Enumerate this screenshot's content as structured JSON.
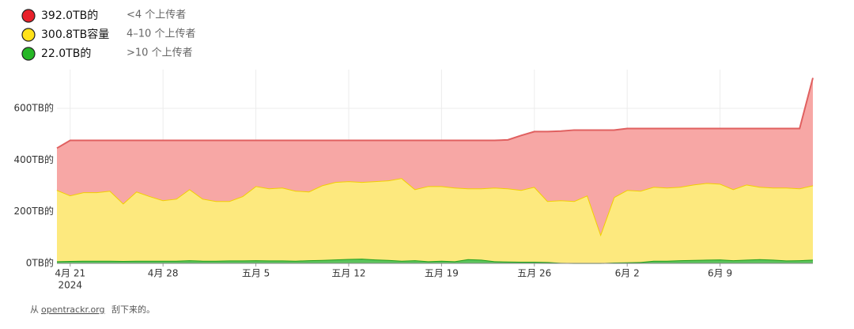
{
  "chart_data": {
    "type": "stacked-area",
    "x": [
      "2024-04-20",
      "2024-04-21",
      "2024-04-22",
      "2024-04-23",
      "2024-04-24",
      "2024-04-25",
      "2024-04-26",
      "2024-04-27",
      "2024-04-28",
      "2024-04-29",
      "2024-04-30",
      "2024-05-01",
      "2024-05-02",
      "2024-05-03",
      "2024-05-04",
      "2024-05-05",
      "2024-05-06",
      "2024-05-07",
      "2024-05-08",
      "2024-05-09",
      "2024-05-10",
      "2024-05-11",
      "2024-05-12",
      "2024-05-13",
      "2024-05-14",
      "2024-05-15",
      "2024-05-16",
      "2024-05-17",
      "2024-05-18",
      "2024-05-19",
      "2024-05-20",
      "2024-05-21",
      "2024-05-22",
      "2024-05-23",
      "2024-05-24",
      "2024-05-25",
      "2024-05-26",
      "2024-05-27",
      "2024-05-28",
      "2024-05-29",
      "2024-05-30",
      "2024-05-31",
      "2024-06-01",
      "2024-06-02",
      "2024-06-03",
      "2024-06-04",
      "2024-06-05",
      "2024-06-06",
      "2024-06-07",
      "2024-06-08",
      "2024-06-09",
      "2024-06-10",
      "2024-06-11",
      "2024-06-12",
      "2024-06-13",
      "2024-06-14",
      "2024-06-15",
      "2024-06-16"
    ],
    "series": [
      {
        "name": "392.0TB的",
        "description": "<4 个上传者",
        "color": "#e8202a",
        "fill": "#f7a7a5",
        "line": "#e06060",
        "values": [
          162,
          213,
          201,
          201,
          195,
          244,
          198,
          216,
          232,
          226,
          189,
          226,
          235,
          235,
          216,
          177,
          186,
          183,
          195,
          198,
          174,
          161,
          158,
          161,
          158,
          155,
          146,
          189,
          177,
          177,
          183,
          186,
          186,
          183,
          188,
          211,
          214,
          269,
          268,
          275,
          253,
          403,
          260,
          238,
          241,
          226,
          229,
          226,
          217,
          211,
          214,
          235,
          217,
          226,
          229,
          229,
          232,
          416
        ]
      },
      {
        "name": "300.8TB容量",
        "description": "4–10 个上传者",
        "color": "#ffe21a",
        "fill": "#fde97e",
        "line": "#f2cf00",
        "values": [
          276,
          254,
          265,
          265,
          271,
          223,
          268,
          250,
          234,
          240,
          275,
          240,
          231,
          230,
          249,
          287,
          279,
          282,
          271,
          266,
          289,
          300,
          301,
          297,
          303,
          308,
          320,
          275,
          291,
          289,
          285,
          274,
          276,
          285,
          283,
          278,
          290,
          236,
          242,
          240,
          262,
          112,
          253,
          280,
          276,
          286,
          283,
          284,
          292,
          297,
          293,
          275,
          291,
          280,
          279,
          282,
          278,
          288
        ]
      },
      {
        "name": "22.0TB的",
        "description": ">10 个上传者",
        "color": "#26b726",
        "fill": "#5cc35c",
        "line": "#1e9e1e",
        "values": [
          8,
          9,
          10,
          10,
          10,
          9,
          10,
          10,
          10,
          10,
          12,
          10,
          10,
          11,
          11,
          12,
          11,
          11,
          10,
          12,
          13,
          15,
          17,
          18,
          15,
          13,
          10,
          12,
          8,
          10,
          8,
          16,
          14,
          8,
          7,
          6,
          6,
          5,
          2,
          1,
          1,
          1,
          3,
          4,
          5,
          10,
          10,
          12,
          13,
          14,
          15,
          12,
          14,
          16,
          14,
          11,
          12,
          14
        ]
      }
    ],
    "xlim": [
      "2024-04-20",
      "2024-06-16"
    ],
    "xticks": [
      {
        "value": "2024-04-21",
        "label": "4月 21"
      },
      {
        "value": "2024-04-28",
        "label": "4月 28"
      },
      {
        "value": "2024-05-05",
        "label": "五月 5"
      },
      {
        "value": "2024-05-12",
        "label": "五月 12"
      },
      {
        "value": "2024-05-19",
        "label": "五月 19"
      },
      {
        "value": "2024-05-26",
        "label": "五月 26"
      },
      {
        "value": "2024-06-02",
        "label": "6月 2"
      },
      {
        "value": "2024-06-09",
        "label": "6月 9"
      }
    ],
    "x_year_label": "2024",
    "ylim": [
      0,
      750
    ],
    "yticks": [
      {
        "value": 0,
        "label": "0TB的"
      },
      {
        "value": 200,
        "label": "200TB的"
      },
      {
        "value": 400,
        "label": "400TB的"
      },
      {
        "value": 600,
        "label": "600TB的"
      }
    ],
    "grid": true
  },
  "footer": {
    "prefix": "从",
    "link": "opentrackr.org",
    "suffix": "刮下来的。"
  }
}
